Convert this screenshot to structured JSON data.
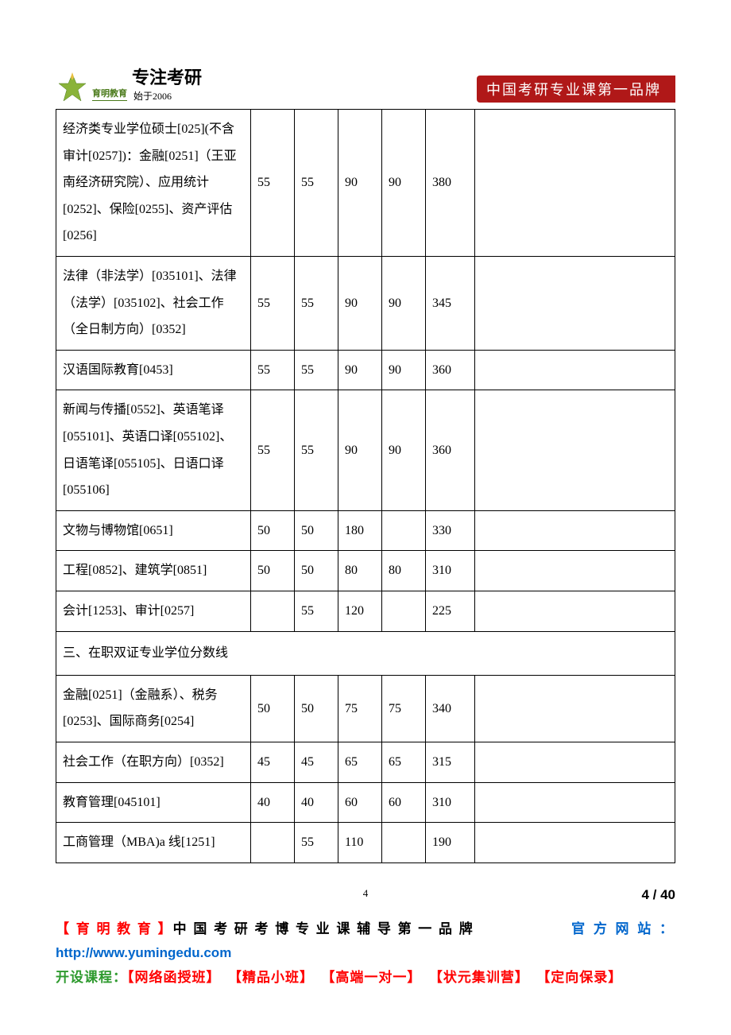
{
  "header": {
    "brand_small": "育明教育",
    "script": "专注考研",
    "since": "始于2006",
    "banner": "中国考研专业课第一品牌"
  },
  "table": {
    "rows": [
      {
        "label": "经济类专业学位硕士[025](不含审计[0257])：金融[0251]（王亚南经济研究院）、应用统计[0252]、保险[0255]、资产评估[0256]",
        "c1": "55",
        "c2": "55",
        "c3": "90",
        "c4": "90",
        "total": "380",
        "extra": ""
      },
      {
        "label": "法律（非法学）[035101]、法律（法学）[035102]、社会工作（全日制方向）[0352]",
        "c1": "55",
        "c2": "55",
        "c3": "90",
        "c4": "90",
        "total": "345",
        "extra": ""
      },
      {
        "label": "汉语国际教育[0453]",
        "c1": "55",
        "c2": "55",
        "c3": "90",
        "c4": "90",
        "total": "360",
        "extra": ""
      },
      {
        "label": "新闻与传播[0552]、英语笔译[055101]、英语口译[055102]、日语笔译[055105]、日语口译[055106]",
        "c1": "55",
        "c2": "55",
        "c3": "90",
        "c4": "90",
        "total": "360",
        "extra": ""
      },
      {
        "label": "文物与博物馆[0651]",
        "c1": "50",
        "c2": "50",
        "c3": "180",
        "c4": "",
        "total": "330",
        "extra": ""
      },
      {
        "label": "工程[0852]、建筑学[0851]",
        "c1": "50",
        "c2": "50",
        "c3": "80",
        "c4": "80",
        "total": "310",
        "extra": ""
      },
      {
        "label": "会计[1253]、审计[0257]",
        "c1": "",
        "c2": "55",
        "c3": "120",
        "c4": "",
        "total": "225",
        "extra": ""
      }
    ],
    "section_title": "三、在职双证专业学位分数线",
    "rows2": [
      {
        "label": "金融[0251]（金融系）、税务[0253]、国际商务[0254]",
        "c1": "50",
        "c2": "50",
        "c3": "75",
        "c4": "75",
        "total": "340",
        "extra": ""
      },
      {
        "label": "社会工作（在职方向）[0352]",
        "c1": "45",
        "c2": "45",
        "c3": "65",
        "c4": "65",
        "total": "315",
        "extra": ""
      },
      {
        "label": "教育管理[045101]",
        "c1": "40",
        "c2": "40",
        "c3": "60",
        "c4": "60",
        "total": "310",
        "extra": ""
      },
      {
        "label": "工商管理（MBA)a 线[1251]",
        "c1": "",
        "c2": "55",
        "c3": "110",
        "c4": "",
        "total": "190",
        "extra": ""
      }
    ]
  },
  "page_small": "4",
  "page_big": "4 / 40",
  "footer": {
    "brand": "【 育 明 教 育 】",
    "tagline": "中 国 考 研 考 博 专 业 课 辅 导 第 一 品 牌",
    "official": "官 方 网 站 ：",
    "url": "http://www.yumingedu.com",
    "courses_label": "开设课程：",
    "courses": [
      "【网络函授班】",
      "【精品小班】",
      "【高端一对一】",
      "【状元集训营】",
      "【定向保录】"
    ]
  },
  "colors": {
    "banner_bg": "#b01818",
    "green": "#2e9a2e",
    "red": "#ff0000",
    "blue": "#0066cc",
    "logo_green": "#4a7a1a"
  }
}
